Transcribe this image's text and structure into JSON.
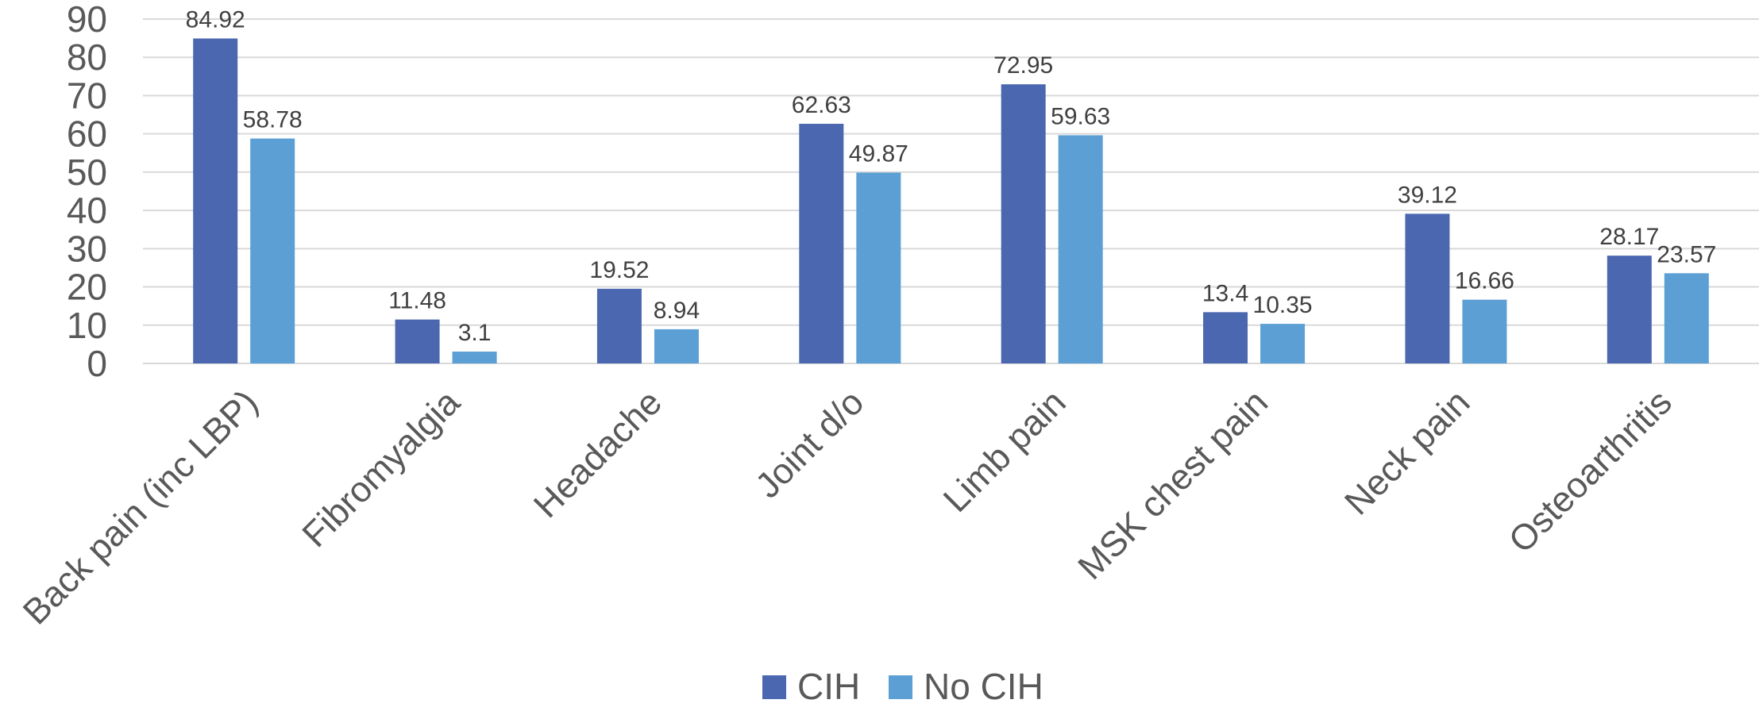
{
  "chart_data": {
    "type": "bar",
    "title": "",
    "xlabel": "",
    "ylabel": "",
    "ylim": [
      0,
      90
    ],
    "yticks": [
      0,
      10,
      20,
      30,
      40,
      50,
      60,
      70,
      80,
      90
    ],
    "grid": true,
    "legend_position": "bottom",
    "categories": [
      "Back pain (inc LBP)",
      "Fibromyalgia",
      "Headache",
      "Joint d/o",
      "Limb pain",
      "MSK chest pain",
      "Neck pain",
      "Osteoarthritis"
    ],
    "series": [
      {
        "name": "CIH",
        "color": "#4a67b0",
        "values": [
          84.92,
          11.48,
          19.52,
          62.63,
          72.95,
          13.4,
          39.12,
          28.17
        ],
        "labels": [
          "84.92",
          "11.48",
          "19.52",
          "62.63",
          "72.95",
          "13.4",
          "39.12",
          "28.17"
        ]
      },
      {
        "name": "No CIH",
        "color": "#5b9fd4",
        "values": [
          58.78,
          3.1,
          8.94,
          49.87,
          59.63,
          10.35,
          16.66,
          23.57
        ],
        "labels": [
          "58.78",
          "3.1",
          "8.94",
          "49.87",
          "59.63",
          "10.35",
          "16.66",
          "23.57"
        ]
      }
    ]
  }
}
